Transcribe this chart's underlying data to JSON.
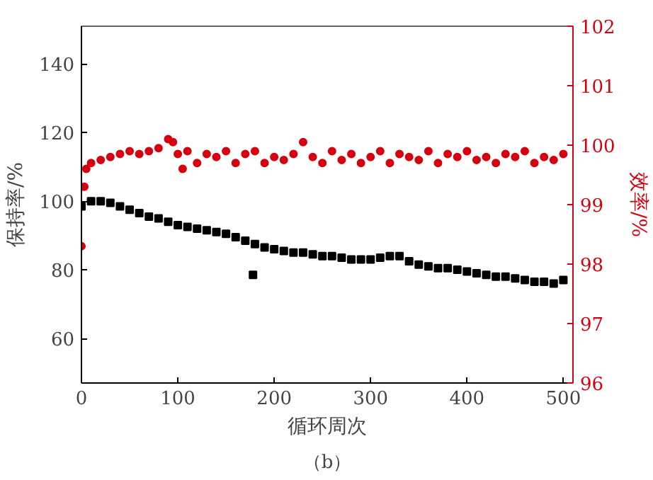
{
  "chart_data": {
    "type": "scatter",
    "xlabel": "循环周次",
    "ylabel": "保持率/%",
    "y2label": "效率/%",
    "annotations": [
      "（b）"
    ],
    "xlim": [
      0,
      510
    ],
    "xticks": [
      0,
      100,
      200,
      300,
      400,
      500
    ],
    "ylim": [
      47,
      151
    ],
    "yticks": [
      60,
      80,
      100,
      120,
      140
    ],
    "y2lim": [
      96,
      102
    ],
    "y2ticks": [
      96,
      97,
      98,
      99,
      100,
      101,
      102
    ],
    "grid": false,
    "series": [
      {
        "color": "#000000",
        "marker": "square",
        "x": [
          0,
          10,
          20,
          30,
          40,
          50,
          60,
          70,
          80,
          90,
          100,
          110,
          120,
          130,
          140,
          150,
          160,
          170,
          178,
          180,
          190,
          200,
          210,
          220,
          230,
          240,
          250,
          260,
          270,
          280,
          290,
          300,
          310,
          320,
          330,
          340,
          350,
          360,
          370,
          380,
          390,
          400,
          410,
          420,
          430,
          440,
          450,
          460,
          470,
          480,
          490,
          500
        ],
        "values": [
          98.5,
          100,
          100,
          99.5,
          98.5,
          97.5,
          96.5,
          95.5,
          95,
          94,
          93,
          92.5,
          92,
          91.5,
          91,
          90.5,
          89.5,
          88.5,
          78.5,
          87.5,
          86.5,
          86,
          85.5,
          85,
          85,
          84.5,
          84,
          84,
          83.5,
          83,
          83,
          83,
          83.5,
          84,
          84,
          82.5,
          81.5,
          81,
          80.5,
          80.5,
          80,
          79.5,
          79,
          78.5,
          78,
          78,
          77.5,
          77,
          76.5,
          76.5,
          76,
          77
        ]
      },
      {
        "color": "#d7000f",
        "marker": "circle",
        "axis": "y2",
        "x": [
          0,
          3,
          5,
          10,
          20,
          30,
          40,
          50,
          60,
          70,
          80,
          90,
          95,
          100,
          105,
          110,
          120,
          130,
          140,
          150,
          160,
          170,
          180,
          190,
          200,
          210,
          220,
          230,
          240,
          250,
          260,
          270,
          280,
          290,
          300,
          310,
          320,
          330,
          340,
          350,
          360,
          370,
          380,
          390,
          400,
          410,
          420,
          430,
          440,
          450,
          460,
          470,
          480,
          490,
          500
        ],
        "values": [
          98.3,
          99.3,
          99.6,
          99.7,
          99.75,
          99.8,
          99.85,
          99.9,
          99.85,
          99.9,
          99.95,
          100.1,
          100.05,
          99.85,
          99.6,
          99.9,
          99.7,
          99.85,
          99.8,
          99.9,
          99.7,
          99.85,
          99.9,
          99.7,
          99.8,
          99.75,
          99.85,
          100.05,
          99.8,
          99.7,
          99.9,
          99.75,
          99.85,
          99.7,
          99.8,
          99.9,
          99.7,
          99.85,
          99.8,
          99.75,
          99.9,
          99.7,
          99.85,
          99.8,
          99.9,
          99.75,
          99.8,
          99.7,
          99.85,
          99.8,
          99.9,
          99.7,
          99.8,
          99.75,
          99.85
        ]
      }
    ]
  }
}
